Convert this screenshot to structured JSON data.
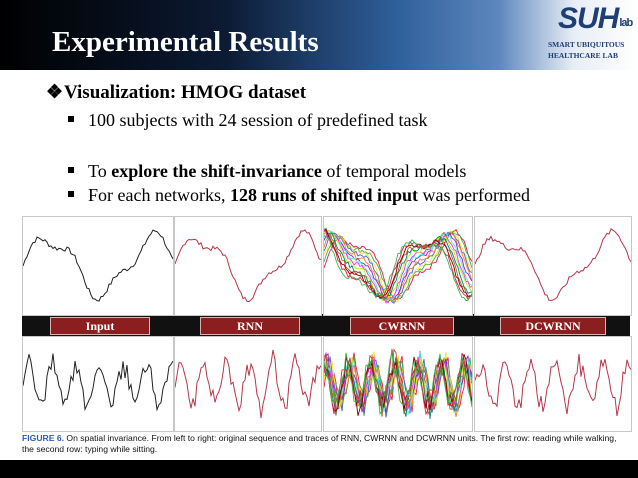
{
  "header": {
    "title": "Experimental Results",
    "logo": {
      "mark": "SUH",
      "lab": "lab",
      "line1": "SMART UBIQUITOUS",
      "line2": "HEALTHCARE LAB"
    }
  },
  "bullets": {
    "main": "Visualization: HMOG dataset",
    "sub1": "100 subjects with 24 session of predefined task",
    "sub2_pre": "To ",
    "sub2_bold": "explore the shift-invariance",
    "sub2_post": " of temporal models",
    "sub3_pre": "For each networks, ",
    "sub3_bold": "128 runs of shifted input",
    "sub3_post": " was performed"
  },
  "figure": {
    "labels": [
      "Input",
      "RNN",
      "CWRNN",
      "DCWRNN"
    ],
    "caption_fig": "FIGURE 6.",
    "caption_text": "On spatial invariance. From left to right: original sequence and traces of RNN, CWRNN and DCWRNN units. The first row: reading while walking, the second row: typing while sitting.",
    "colors": {
      "input": "#222222",
      "rnn": "#b5364a",
      "dcwrnn": "#b5364a",
      "label_bg": "#8b1f1f"
    },
    "panel_colors": [
      "#222222",
      "#b5364a",
      "multicolor",
      "#b5364a"
    ]
  }
}
